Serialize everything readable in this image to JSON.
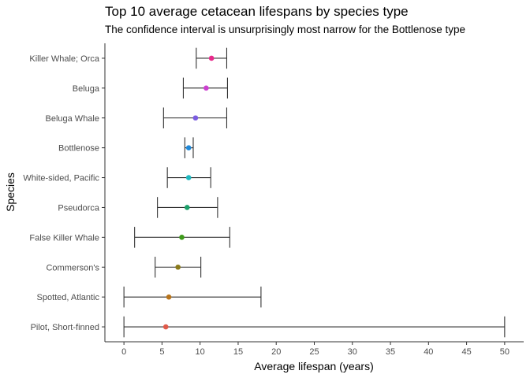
{
  "chart_data": {
    "type": "errorbar",
    "title": "Top 10 average cetacean lifespans by species type",
    "subtitle": "The confidence interval is unsurprisingly most narrow for the Bottlenose type",
    "xlabel": "Average lifespan (years)",
    "ylabel": "Species",
    "xlim": [
      -2.5,
      52.5
    ],
    "x_ticks": [
      0,
      5,
      10,
      15,
      20,
      25,
      30,
      35,
      40,
      45,
      50
    ],
    "grid": false,
    "legend": "none",
    "categories": [
      "Killer Whale; Orca",
      "Beluga",
      "Beluga Whale",
      "Bottlenose",
      "White-sided, Pacific",
      "Pseudorca",
      "False Killer Whale",
      "Commerson's",
      "Spotted, Atlantic",
      "Pilot, Short-finned"
    ],
    "mean": [
      11.5,
      10.8,
      9.4,
      8.5,
      8.5,
      8.3,
      7.6,
      7.1,
      5.9,
      5.5
    ],
    "lower": [
      9.5,
      7.8,
      5.2,
      8.0,
      5.7,
      4.4,
      1.4,
      4.1,
      0.0,
      0.0
    ],
    "upper": [
      13.5,
      13.6,
      13.5,
      9.1,
      11.4,
      12.3,
      13.9,
      10.1,
      18.0,
      50.0
    ],
    "colors": [
      "#E7298A",
      "#CC3FD0",
      "#7B5CE0",
      "#1F88D8",
      "#1FB8C0",
      "#1BA06A",
      "#3D9A1A",
      "#8A7A1A",
      "#B8741C",
      "#E05A4A"
    ]
  }
}
